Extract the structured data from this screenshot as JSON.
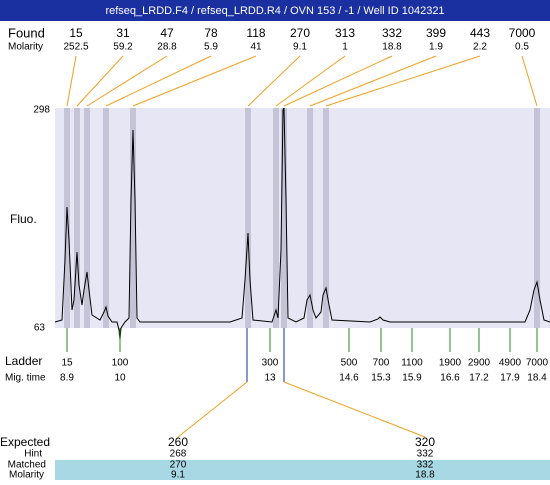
{
  "header": {
    "title": "refseq_LRDD.F4 / refseq_LRDD.R4 / OVN 153 / -1 / Well ID 1042321"
  },
  "found": {
    "label": "Found",
    "molarity_label": "Molarity",
    "sizes": [
      15,
      31,
      47,
      78,
      118,
      270,
      313,
      332,
      399,
      443,
      7000
    ],
    "molarities": [
      252.5,
      59.2,
      28.8,
      5.9,
      41,
      9.1,
      1,
      18.8,
      1.9,
      2.2,
      0.5
    ]
  },
  "plot": {
    "y_label": "Fluo.",
    "y_top": 298,
    "y_bottom": 63
  },
  "ladder": {
    "label": "Ladder",
    "time_label": "Mig. time",
    "sizes": [
      15,
      100,
      300,
      500,
      700,
      1100,
      1900,
      2900,
      4900,
      7000
    ],
    "times": [
      8.9,
      10,
      13,
      14.6,
      15.3,
      15.9,
      16.6,
      17.2,
      17.9,
      18.4
    ]
  },
  "expected": {
    "label": "Expected",
    "hint_label": "Hint",
    "matched_label": "Matched",
    "molarity_label": "Molarity",
    "sizes": [
      260,
      320
    ],
    "hints": [
      268,
      332
    ],
    "matched": [
      270,
      332
    ],
    "molarities": [
      9.1,
      18.8
    ]
  }
}
